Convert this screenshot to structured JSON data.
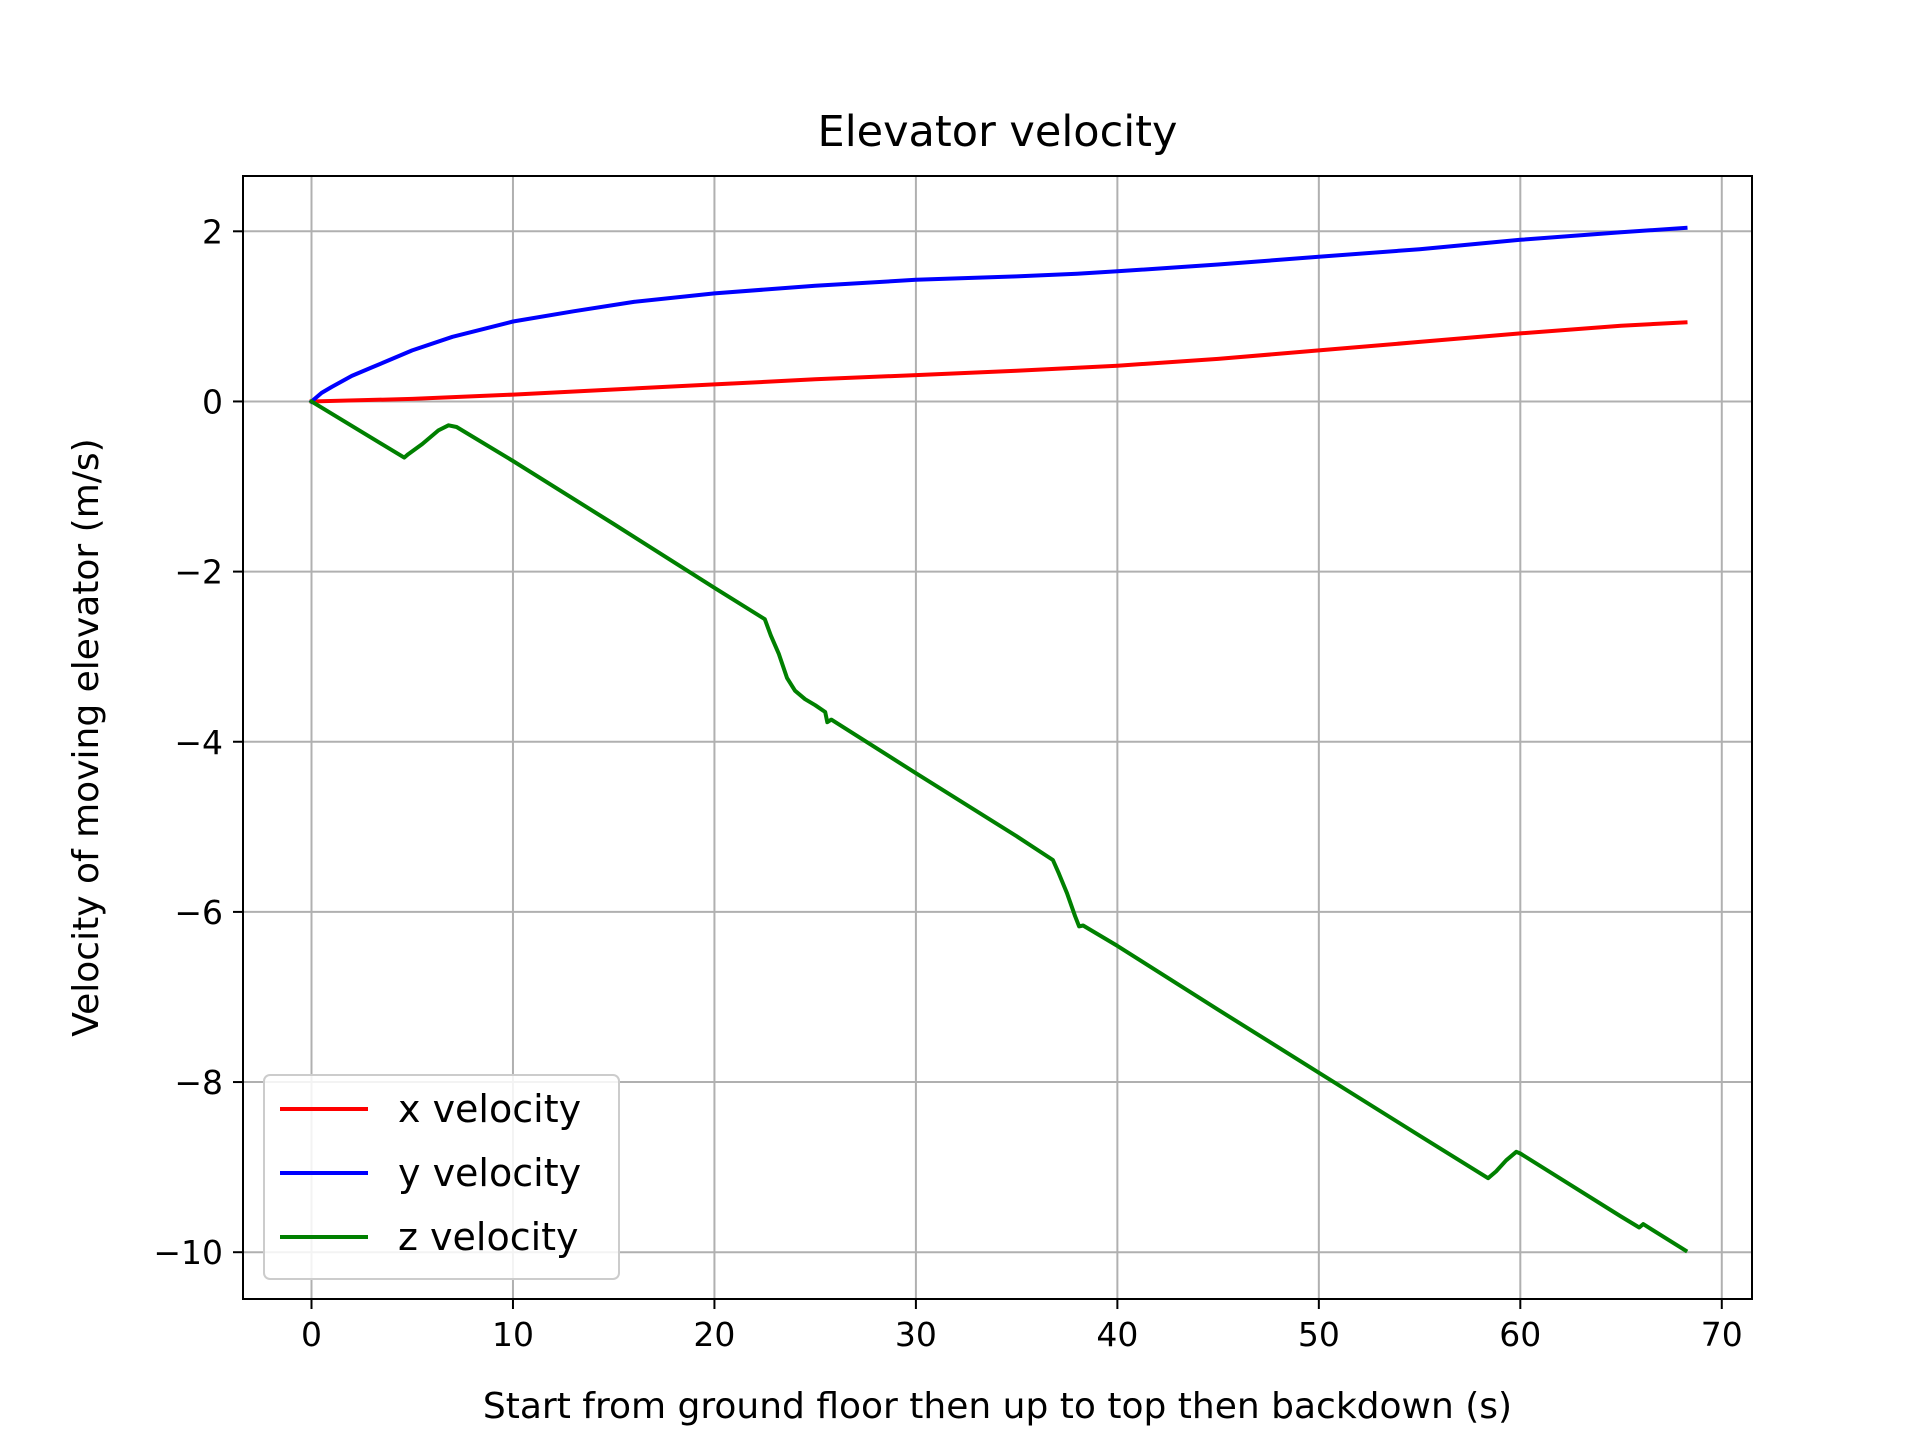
{
  "chart_data": {
    "type": "line",
    "title": "Elevator velocity",
    "xlabel": "Start from ground floor then up to top then backdown (s)",
    "ylabel": "Velocity of moving elevator (m/s)",
    "xlim": [
      -3.4,
      71.5
    ],
    "ylim": [
      -10.55,
      2.65
    ],
    "xticks": [
      0,
      10,
      20,
      30,
      40,
      50,
      60,
      70
    ],
    "yticks": [
      2,
      0,
      -2,
      -4,
      -6,
      -8,
      -10
    ],
    "xtick_labels": [
      "0",
      "10",
      "20",
      "30",
      "40",
      "50",
      "60",
      "70"
    ],
    "ytick_labels": [
      "2",
      "0",
      "−2",
      "−4",
      "−6",
      "−8",
      "−10"
    ],
    "grid": true,
    "legend_position": "lower-left",
    "series": [
      {
        "name": "x velocity",
        "color": "#ff0000",
        "points": [
          [
            0,
            0
          ],
          [
            5,
            0.03
          ],
          [
            10,
            0.08
          ],
          [
            15,
            0.14
          ],
          [
            20,
            0.2
          ],
          [
            25,
            0.26
          ],
          [
            30,
            0.31
          ],
          [
            35,
            0.36
          ],
          [
            40,
            0.42
          ],
          [
            45,
            0.5
          ],
          [
            50,
            0.6
          ],
          [
            55,
            0.7
          ],
          [
            60,
            0.8
          ],
          [
            65,
            0.89
          ],
          [
            68.2,
            0.93
          ]
        ]
      },
      {
        "name": "y velocity",
        "color": "#0000ff",
        "points": [
          [
            0,
            0
          ],
          [
            0.5,
            0.1
          ],
          [
            1,
            0.17
          ],
          [
            2,
            0.3
          ],
          [
            3,
            0.4
          ],
          [
            4,
            0.5
          ],
          [
            5,
            0.6
          ],
          [
            7,
            0.76
          ],
          [
            10,
            0.94
          ],
          [
            13,
            1.06
          ],
          [
            16,
            1.17
          ],
          [
            20,
            1.27
          ],
          [
            25,
            1.36
          ],
          [
            30,
            1.43
          ],
          [
            35,
            1.47
          ],
          [
            38,
            1.5
          ],
          [
            40,
            1.53
          ],
          [
            45,
            1.61
          ],
          [
            50,
            1.7
          ],
          [
            55,
            1.79
          ],
          [
            60,
            1.9
          ],
          [
            65,
            1.99
          ],
          [
            68.2,
            2.04
          ]
        ]
      },
      {
        "name": "z velocity",
        "color": "#008000",
        "points": [
          [
            0,
            0
          ],
          [
            4.6,
            -0.66
          ],
          [
            4.8,
            -0.62
          ],
          [
            5.5,
            -0.5
          ],
          [
            6.3,
            -0.34
          ],
          [
            6.8,
            -0.28
          ],
          [
            7.2,
            -0.3
          ],
          [
            10,
            -0.7
          ],
          [
            15,
            -1.44
          ],
          [
            20,
            -2.19
          ],
          [
            22.5,
            -2.56
          ],
          [
            22.8,
            -2.75
          ],
          [
            23.2,
            -2.97
          ],
          [
            23.6,
            -3.25
          ],
          [
            24,
            -3.4
          ],
          [
            24.5,
            -3.5
          ],
          [
            25,
            -3.57
          ],
          [
            25.5,
            -3.65
          ],
          [
            25.6,
            -3.77
          ],
          [
            25.8,
            -3.74
          ],
          [
            30,
            -4.37
          ],
          [
            35,
            -5.11
          ],
          [
            36.8,
            -5.39
          ],
          [
            37.1,
            -5.55
          ],
          [
            37.5,
            -5.78
          ],
          [
            37.9,
            -6.05
          ],
          [
            38.1,
            -6.17
          ],
          [
            38.3,
            -6.16
          ],
          [
            40,
            -6.4
          ],
          [
            45,
            -7.15
          ],
          [
            50,
            -7.89
          ],
          [
            55,
            -8.63
          ],
          [
            58.4,
            -9.13
          ],
          [
            58.8,
            -9.05
          ],
          [
            59.3,
            -8.92
          ],
          [
            59.8,
            -8.82
          ],
          [
            60,
            -8.84
          ],
          [
            65,
            -9.58
          ],
          [
            65.9,
            -9.71
          ],
          [
            66.1,
            -9.67
          ],
          [
            68.2,
            -9.98
          ]
        ]
      }
    ]
  }
}
